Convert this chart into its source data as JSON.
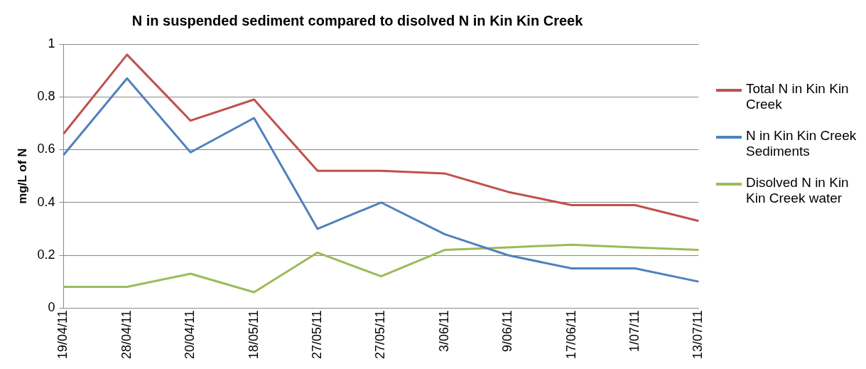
{
  "chart_data": {
    "type": "line",
    "title": "N in suspended sediment compared to disolved N in Kin Kin Creek",
    "ylabel": "mg/L of N",
    "categories": [
      "19/04/11",
      "28/04/11",
      "20/04/11",
      "18/05/11",
      "27/05/11",
      "27/05/11",
      "3/06/11",
      "9/06/11",
      "17/06/11",
      "1/07/11",
      "13/07/11"
    ],
    "series": [
      {
        "name": "Total N in Kin Kin Creek",
        "color": "#c0504d",
        "values": [
          0.66,
          0.96,
          0.71,
          0.79,
          0.52,
          0.52,
          0.51,
          0.44,
          0.39,
          0.39,
          0.33
        ]
      },
      {
        "name": "N in Kin Kin Creek Sediments",
        "color": "#4f81bd",
        "values": [
          0.58,
          0.87,
          0.59,
          0.72,
          0.3,
          0.4,
          0.28,
          0.2,
          0.15,
          0.15,
          0.1
        ]
      },
      {
        "name": "Disolved N in Kin Kin Creek water",
        "color": "#9bbb59",
        "values": [
          0.08,
          0.08,
          0.13,
          0.06,
          0.21,
          0.12,
          0.22,
          0.23,
          0.24,
          0.23,
          0.22
        ]
      }
    ],
    "ylim": [
      0,
      1
    ],
    "yticks": [
      0,
      0.2,
      0.4,
      0.6,
      0.8,
      1
    ],
    "grid": "y",
    "legend": "right",
    "marker": "none"
  }
}
